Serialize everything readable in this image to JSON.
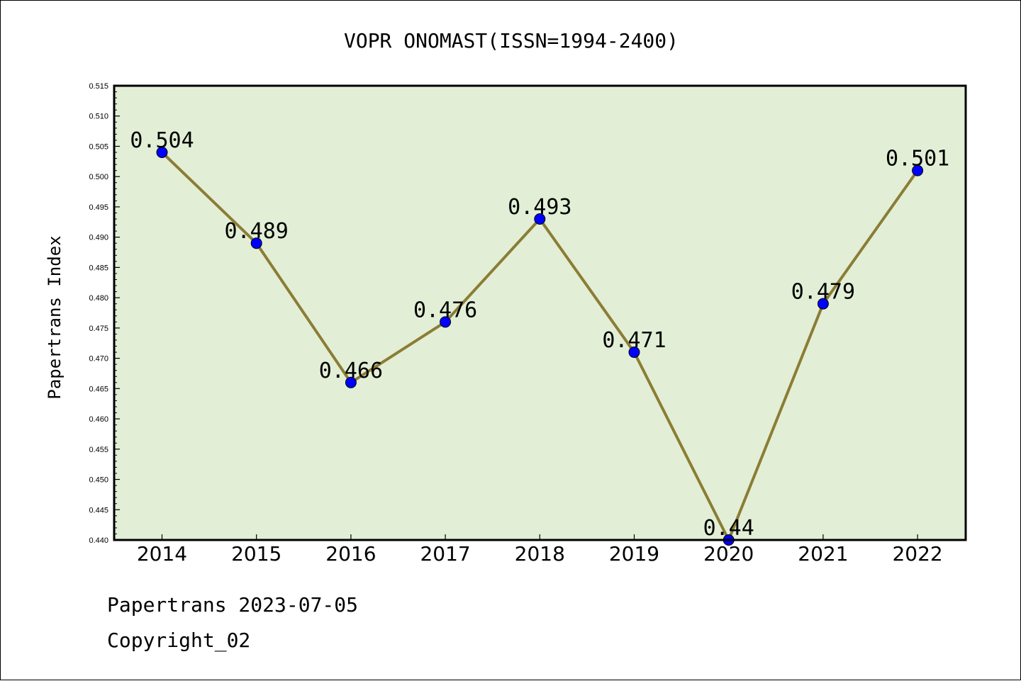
{
  "chart_data": {
    "type": "line",
    "title": "VOPR ONOMAST(ISSN=1994-2400)",
    "xlabel": "",
    "ylabel": "Papertrans Index",
    "categories": [
      "2014",
      "2015",
      "2016",
      "2017",
      "2018",
      "2019",
      "2020",
      "2021",
      "2022"
    ],
    "series": [
      {
        "values": [
          0.504,
          0.489,
          0.466,
          0.476,
          0.493,
          0.471,
          0.44,
          0.479,
          0.501
        ],
        "labels": [
          "0.504",
          "0.489",
          "0.466",
          "0.476",
          "0.493",
          "0.471",
          "0.44",
          "0.479",
          "0.501"
        ]
      }
    ],
    "ylim": [
      0.44,
      0.515
    ],
    "yticks": [
      "0.440",
      "0.445",
      "0.450",
      "0.455",
      "0.460",
      "0.465",
      "0.470",
      "0.475",
      "0.480",
      "0.485",
      "0.490",
      "0.495",
      "0.500",
      "0.505",
      "0.510",
      "0.515"
    ],
    "grid": false,
    "colors": {
      "plot_bg": "#e2efd6",
      "line": "#8b7d35",
      "marker": "#0000ff"
    }
  },
  "footer": {
    "line1": "Papertrans 2023-07-05",
    "line2": "Copyright_02"
  }
}
